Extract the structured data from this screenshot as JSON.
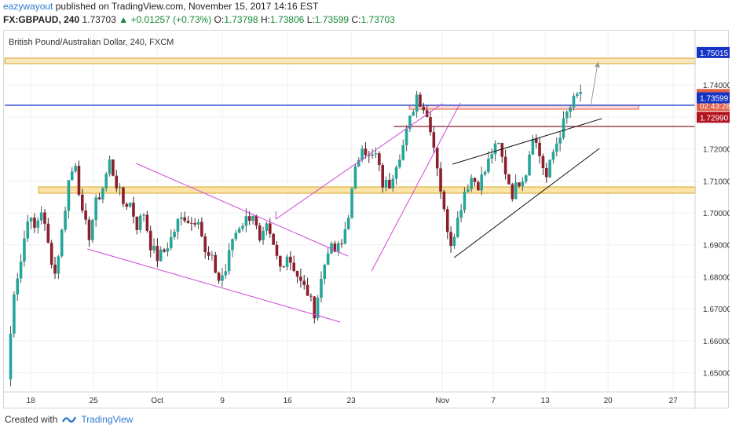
{
  "header": {
    "user": "eazywayout",
    "published": "published on TradingView.com, November 15, 2017 14:16 EST",
    "symbol": "FX:GBPAUD, 240",
    "price": "1.73703",
    "change_arrow": "▲",
    "change": "+0.01257 (+0.73%)",
    "o_label": "O:",
    "o": "1.73798",
    "h_label": "H:",
    "h": "1.73806",
    "l_label": "L:",
    "l": "1.73599",
    "c_label": "C:",
    "c": "1.73703"
  },
  "chart_data": {
    "type": "candlestick",
    "title": "British Pound/Australian Dollar, 240, FXCM",
    "ylim": [
      1.644,
      1.757
    ],
    "y_ticks": [
      "1.65000",
      "1.66000",
      "1.67000",
      "1.68000",
      "1.69000",
      "1.70000",
      "1.71000",
      "1.72000",
      "1.73000",
      "1.74000"
    ],
    "x_ticks": [
      "18",
      "25",
      "Oct",
      "9",
      "16",
      "23",
      "Nov",
      "7",
      "13",
      "20",
      "27"
    ],
    "price_labels": [
      {
        "value": 1.75015,
        "text": "1.75015",
        "color": "#1533c4"
      },
      {
        "value": 1.73703,
        "text": "1.73703",
        "color": "#e06048"
      },
      {
        "value": 1.7336,
        "text": "02:43:28",
        "color": "#e06048"
      },
      {
        "value": 1.73599,
        "text": "1.73599",
        "color": "#1533c4"
      },
      {
        "value": 1.7299,
        "text": "1.72990",
        "color": "#b0121e"
      }
    ],
    "path": [
      1.648,
      1.676,
      1.685,
      1.699,
      1.695,
      1.701,
      1.69,
      1.681,
      1.694,
      1.71,
      1.716,
      1.699,
      1.693,
      1.703,
      1.708,
      1.716,
      1.709,
      1.703,
      1.703,
      1.696,
      1.7,
      1.69,
      1.686,
      1.688,
      1.692,
      1.697,
      1.699,
      1.697,
      1.699,
      1.687,
      1.685,
      1.679,
      1.682,
      1.692,
      1.696,
      1.698,
      1.7,
      1.69,
      1.695,
      1.689,
      1.683,
      1.687,
      1.683,
      1.678,
      1.675,
      1.669,
      1.679,
      1.689,
      1.688,
      1.69,
      1.7,
      1.713,
      1.722,
      1.717,
      1.718,
      1.709,
      1.709,
      1.716,
      1.721,
      1.729,
      1.737,
      1.733,
      1.727,
      1.715,
      1.7,
      1.691,
      1.698,
      1.707,
      1.711,
      1.709,
      1.713,
      1.719,
      1.721,
      1.713,
      1.706,
      1.71,
      1.713,
      1.725,
      1.718,
      1.711,
      1.719,
      1.725,
      1.731,
      1.735,
      1.738
    ],
    "colors": {
      "up": "#26a69a",
      "down": "#8c1e2e",
      "up_wick": "#4a5a52",
      "down_wick": "#3a2024"
    },
    "annotations": "Falling channel (Sep-Oct), rising channel, rising wedge (Nov), horizontal support zone near 1.7100, resistance zones near 1.7375 and 1.7502"
  }
}
